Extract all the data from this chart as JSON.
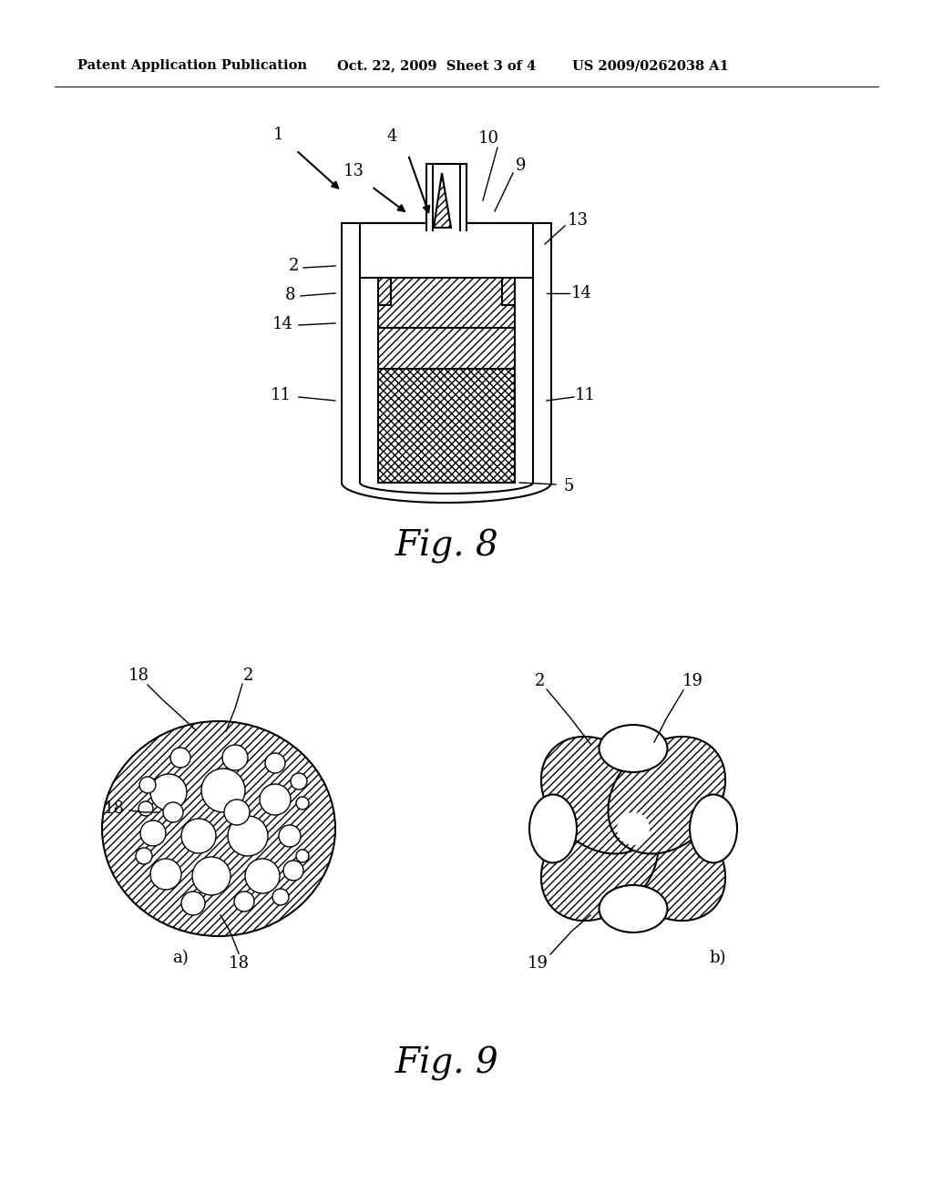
{
  "bg_color": "#ffffff",
  "line_color": "#000000",
  "header_left": "Patent Application Publication",
  "header_mid": "Oct. 22, 2009  Sheet 3 of 4",
  "header_right": "US 2009/0262038 A1",
  "fig8_title": "Fig. 8",
  "fig9_title": "Fig. 9",
  "fig_width": 10.24,
  "fig_height": 13.2
}
